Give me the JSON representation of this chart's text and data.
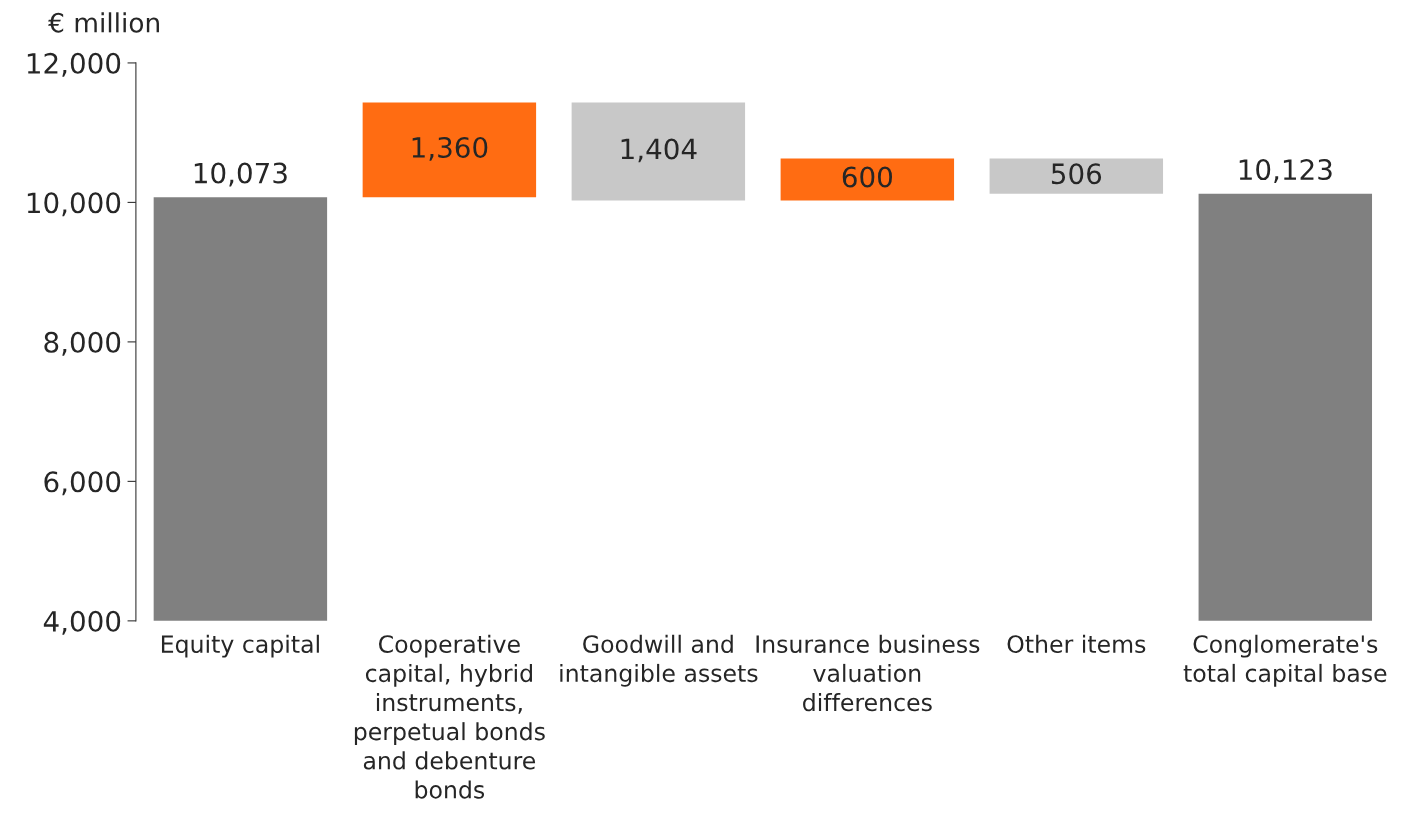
{
  "chart_data": {
    "type": "bar",
    "ylabel": "€ million",
    "categories": [
      "Equity capital",
      "Cooperative capital, hybrid instruments, perpetual bonds and debenture bonds",
      "Goodwill and intangible assets",
      "Insurance business valuation differences",
      "Other items",
      "Conglomerate's total capital base"
    ],
    "values": [
      10073,
      1360,
      -1404,
      600,
      -506,
      10123
    ],
    "base": [
      null,
      10073,
      11433,
      10029,
      10629,
      null
    ],
    "colors": [
      "#808080",
      "#ff6c12",
      "#c8c8c8",
      "#ff6c12",
      "#c8c8c8",
      "#808080"
    ],
    "value_labels": [
      "10,073",
      "1,360",
      "1,404",
      "600",
      "506",
      "10,123"
    ],
    "ylim": [
      4000,
      12000
    ],
    "yticks": [
      {
        "value": 4000,
        "label": "4,000"
      },
      {
        "value": 6000,
        "label": "6,000"
      },
      {
        "value": 8000,
        "label": "8,000"
      },
      {
        "value": 10000,
        "label": "10,000"
      },
      {
        "value": 12000,
        "label": "12,000"
      }
    ],
    "grid": false,
    "legend": false
  }
}
